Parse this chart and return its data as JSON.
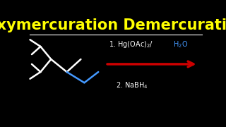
{
  "title": "Oxymercuration Demercuration",
  "title_color": "#FFFF00",
  "title_fontsize": 15,
  "background_color": "#000000",
  "line_color": "#FFFFFF",
  "separator_color": "#FFFFFF",
  "arrow_color": "#CC0000",
  "text_color": "#FFFFFF",
  "blue_color": "#4499FF"
}
